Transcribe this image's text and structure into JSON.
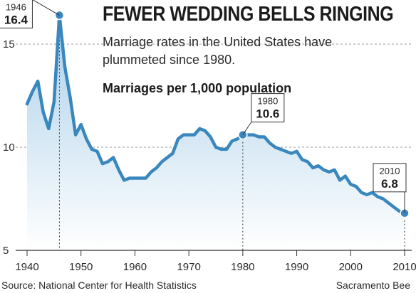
{
  "header": {
    "title": "FEWER WEDDING BELLS RINGING",
    "subtitle": "Marriage rates in the United States have plummeted since 1980.",
    "units": "Marriages per 1,000 population"
  },
  "footer": {
    "source": "Source: National Center for Health Statistics",
    "credit": "Sacramento Bee"
  },
  "colors": {
    "line": "#3a87be",
    "fill_top": "#a9cfe9",
    "fill_bottom": "#ffffff",
    "grid": "#9a9a9a",
    "text": "#1b1b1b"
  },
  "chart_data": {
    "type": "line",
    "title": "FEWER WEDDING BELLS RINGING",
    "ylabel": "Marriages per 1,000 population",
    "xlabel": "",
    "xlim": [
      1940,
      2010
    ],
    "ylim": [
      5,
      16.5
    ],
    "x_ticks": [
      1940,
      1950,
      1960,
      1970,
      1980,
      1990,
      2000,
      2010
    ],
    "y_ticks": [
      5,
      10,
      15
    ],
    "grid": "dashed at y ticks",
    "series": [
      {
        "x": [
          1940,
          1941,
          1942,
          1943,
          1944,
          1945,
          1946,
          1947,
          1948,
          1949,
          1950,
          1951,
          1952,
          1953,
          1954,
          1955,
          1956,
          1957,
          1958,
          1959,
          1960,
          1961,
          1962,
          1963,
          1964,
          1965,
          1966,
          1967,
          1968,
          1969,
          1970,
          1971,
          1972,
          1973,
          1974,
          1975,
          1976,
          1977,
          1978,
          1979,
          1980,
          1981,
          1982,
          1983,
          1984,
          1985,
          1986,
          1987,
          1988,
          1989,
          1990,
          1991,
          1992,
          1993,
          1994,
          1995,
          1996,
          1997,
          1998,
          1999,
          2000,
          2001,
          2002,
          2003,
          2004,
          2005,
          2006,
          2007,
          2008,
          2009,
          2010
        ],
        "y": [
          12.1,
          12.7,
          13.2,
          11.7,
          10.9,
          12.2,
          16.4,
          13.9,
          12.4,
          10.6,
          11.1,
          10.4,
          9.9,
          9.8,
          9.2,
          9.3,
          9.5,
          8.9,
          8.4,
          8.5,
          8.5,
          8.5,
          8.5,
          8.8,
          9.0,
          9.3,
          9.5,
          9.7,
          10.4,
          10.6,
          10.6,
          10.6,
          10.9,
          10.8,
          10.5,
          10.0,
          9.9,
          9.9,
          10.3,
          10.4,
          10.6,
          10.6,
          10.6,
          10.5,
          10.5,
          10.2,
          10.0,
          9.9,
          9.8,
          9.7,
          9.8,
          9.4,
          9.3,
          9.0,
          9.1,
          8.9,
          8.8,
          8.9,
          8.4,
          8.6,
          8.2,
          8.1,
          7.8,
          7.7,
          7.8,
          7.6,
          7.5,
          7.3,
          7.1,
          6.9,
          6.8
        ]
      }
    ],
    "annotations": [
      {
        "year_label": "1946",
        "value_label": "16.4",
        "x": 1946,
        "y": 16.4
      },
      {
        "year_label": "1980",
        "value_label": "10.6",
        "x": 1980,
        "y": 10.6
      },
      {
        "year_label": "2010",
        "value_label": "6.8",
        "x": 2010,
        "y": 6.8
      }
    ]
  }
}
